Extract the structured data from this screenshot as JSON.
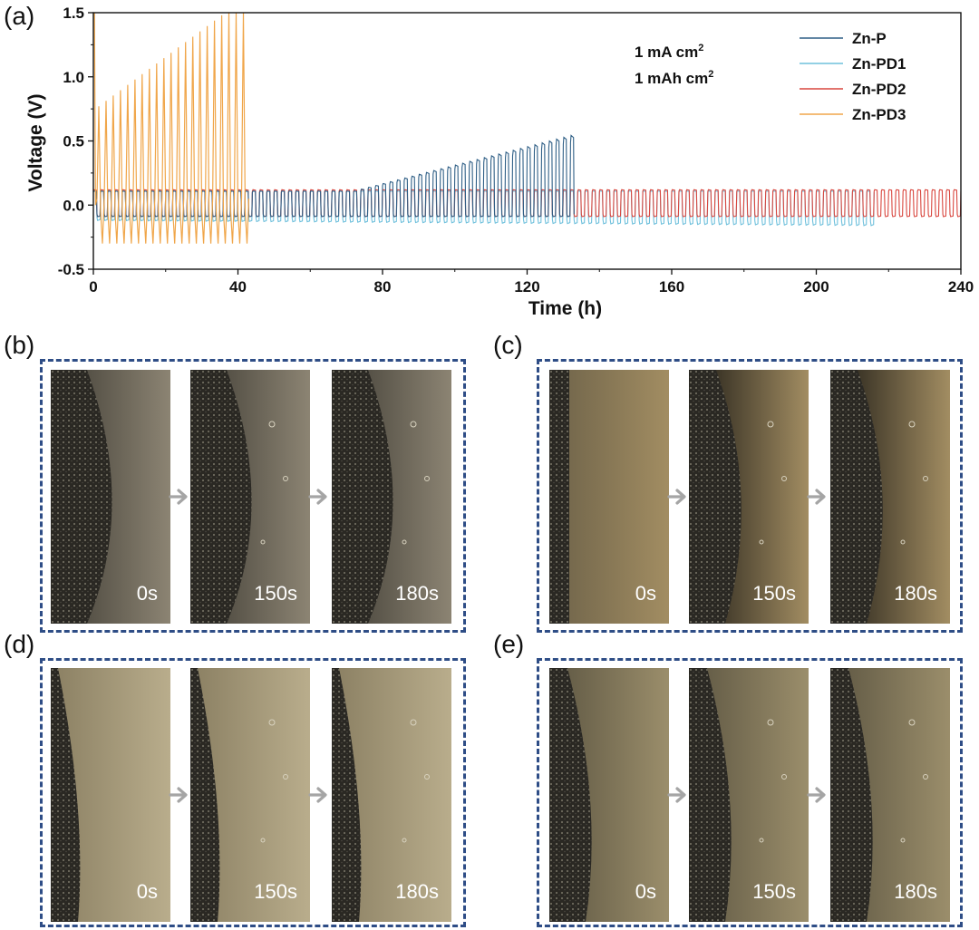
{
  "panels": {
    "a": "(a)",
    "b": "(b)",
    "c": "(c)",
    "d": "(d)",
    "e": "(e)"
  },
  "chart_data": {
    "type": "line",
    "xlabel": "Time (h)",
    "ylabel": "Voltage (V)",
    "xlim": [
      0,
      240
    ],
    "ylim": [
      -0.5,
      1.5
    ],
    "xticks": [
      0,
      40,
      80,
      120,
      160,
      200,
      240
    ],
    "yticks": [
      -0.5,
      0.0,
      0.5,
      1.0,
      1.5
    ],
    "annotation": {
      "line1": "1 mA cm",
      "sup1": "2",
      "line2": "1 mAh cm",
      "sup2": "2"
    },
    "legend_position": "top-right",
    "series": [
      {
        "name": "Zn-P",
        "color": "#2f5f86",
        "end_h": 133,
        "baseline_amp": 0.11,
        "rise_start_h": 72,
        "rise_end_h": 133,
        "peak_end_V": 0.55,
        "neg_V": -0.09
      },
      {
        "name": "Zn-PD1",
        "color": "#6fc0dc",
        "end_h": 216,
        "baseline_amp": 0.11,
        "neg_V": -0.12,
        "neg_end_V": -0.16
      },
      {
        "name": "Zn-PD2",
        "color": "#d9473f",
        "end_h": 240,
        "baseline_amp": 0.12,
        "neg_V": -0.09
      },
      {
        "name": "Zn-PD3",
        "color": "#f0a64a",
        "end_h": 43,
        "peak_start_V": 0.75,
        "peak_end_V": 1.5,
        "neg_V": -0.3
      }
    ]
  },
  "rows": [
    {
      "panel": "b",
      "frames": [
        {
          "label": "0s"
        },
        {
          "label": "150s"
        },
        {
          "label": "180s"
        }
      ]
    },
    {
      "panel": "c",
      "frames": [
        {
          "label": "0s"
        },
        {
          "label": "150s"
        },
        {
          "label": "180s"
        }
      ]
    },
    {
      "panel": "d",
      "frames": [
        {
          "label": "0s"
        },
        {
          "label": "150s"
        },
        {
          "label": "180s"
        }
      ]
    },
    {
      "panel": "e",
      "frames": [
        {
          "label": "0s"
        },
        {
          "label": "150s"
        },
        {
          "label": "180s"
        }
      ]
    }
  ],
  "colors": {
    "box_border": "#2e4d86",
    "arrow": "#a5a5a5"
  }
}
